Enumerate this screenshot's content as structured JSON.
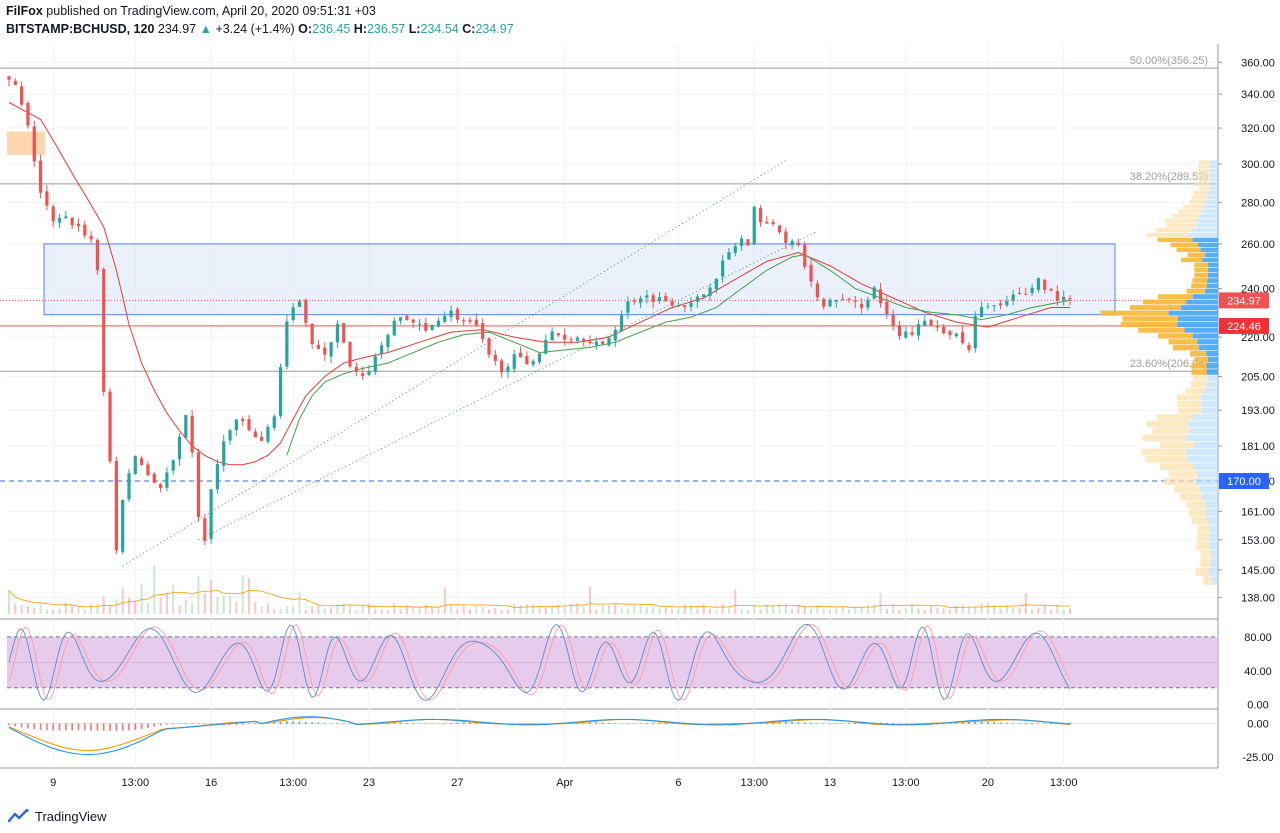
{
  "header": {
    "author": "FilFox",
    "published_text": " published on TradingView.com, April 20, 2020 09:51:31 +03",
    "symbol": "BITSTAMP:BCHUSD, 120",
    "last_price": "234.97",
    "change": "+3.24 (+1.4%)",
    "open_label": "O:",
    "open": "236.45",
    "high_label": "H:",
    "high": "236.57",
    "low_label": "L:",
    "low": "234.54",
    "close_label": "C:",
    "close": "234.97"
  },
  "footer": {
    "brand": "TradingView"
  },
  "colors": {
    "up": "#26a69a",
    "down": "#ef5350",
    "ma_red": "#e53935",
    "ma_green": "#43a047",
    "zone_blue": "#2962ff",
    "stoch_bg": "#e1bee7",
    "macd_blue": "#2196f3",
    "macd_orange": "#ff9800"
  },
  "chart_data": [
    {
      "type": "candlestick",
      "panel": "price",
      "price_axis": {
        "ticks": [
          "360.00",
          "340.00",
          "320.00",
          "300.00",
          "280.00",
          "260.00",
          "240.00",
          "220.00",
          "205.00",
          "193.00",
          "181.00",
          "170.00",
          "161.00",
          "153.00",
          "145.00",
          "138.00"
        ],
        "scale": "log",
        "range": [
          133,
          372
        ]
      },
      "time_axis": {
        "ticks": [
          "9",
          "13:00",
          "16",
          "13:00",
          "23",
          "27",
          "Apr",
          "6",
          "13:00",
          "13",
          "13:00",
          "20",
          "13:00"
        ]
      },
      "price_path": [
        [
          0,
          350
        ],
        [
          2,
          345
        ],
        [
          4,
          320
        ],
        [
          6,
          285
        ],
        [
          8,
          270
        ],
        [
          10,
          272
        ],
        [
          12,
          268
        ],
        [
          14,
          262
        ],
        [
          15,
          248
        ],
        [
          16,
          200
        ],
        [
          17,
          175
        ],
        [
          18,
          150
        ],
        [
          19,
          165
        ],
        [
          21,
          178
        ],
        [
          23,
          172
        ],
        [
          25,
          168
        ],
        [
          27,
          176
        ],
        [
          29,
          190
        ],
        [
          30,
          178
        ],
        [
          31,
          160
        ],
        [
          32,
          152
        ],
        [
          33,
          168
        ],
        [
          35,
          182
        ],
        [
          37,
          190
        ],
        [
          39,
          186
        ],
        [
          41,
          182
        ],
        [
          43,
          192
        ],
        [
          45,
          225
        ],
        [
          47,
          236
        ],
        [
          49,
          218
        ],
        [
          51,
          212
        ],
        [
          53,
          226
        ],
        [
          55,
          208
        ],
        [
          57,
          204
        ],
        [
          59,
          212
        ],
        [
          61,
          222
        ],
        [
          63,
          228
        ],
        [
          65,
          226
        ],
        [
          67,
          222
        ],
        [
          69,
          228
        ],
        [
          71,
          230
        ],
        [
          73,
          226
        ],
        [
          75,
          224
        ],
        [
          77,
          212
        ],
        [
          79,
          208
        ],
        [
          81,
          212
        ],
        [
          83,
          210
        ],
        [
          85,
          214
        ],
        [
          87,
          222
        ],
        [
          89,
          220
        ],
        [
          91,
          220
        ],
        [
          93,
          219
        ],
        [
          95,
          216
        ],
        [
          97,
          224
        ],
        [
          99,
          234
        ],
        [
          101,
          237
        ],
        [
          103,
          236
        ],
        [
          105,
          235
        ],
        [
          107,
          234
        ],
        [
          109,
          233
        ],
        [
          111,
          238
        ],
        [
          113,
          246
        ],
        [
          115,
          256
        ],
        [
          117,
          262
        ],
        [
          118,
          258
        ],
        [
          119,
          276
        ],
        [
          120,
          272
        ],
        [
          122,
          268
        ],
        [
          124,
          262
        ],
        [
          126,
          258
        ],
        [
          128,
          242
        ],
        [
          130,
          232
        ],
        [
          132,
          236
        ],
        [
          134,
          234
        ],
        [
          136,
          233
        ],
        [
          138,
          240
        ],
        [
          140,
          228
        ],
        [
          142,
          220
        ],
        [
          144,
          222
        ],
        [
          146,
          226
        ],
        [
          148,
          224
        ],
        [
          150,
          222
        ],
        [
          152,
          218
        ],
        [
          153,
          214
        ],
        [
          154,
          228
        ],
        [
          156,
          234
        ],
        [
          158,
          232
        ],
        [
          160,
          236
        ],
        [
          162,
          238
        ],
        [
          164,
          244
        ],
        [
          166,
          238
        ],
        [
          168,
          235
        ]
      ],
      "ma_red_path": [
        [
          0,
          335
        ],
        [
          5,
          325
        ],
        [
          10,
          295
        ],
        [
          15,
          268
        ],
        [
          17,
          248
        ],
        [
          19,
          225
        ],
        [
          21,
          210
        ],
        [
          23,
          200
        ],
        [
          25,
          192
        ],
        [
          27,
          186
        ],
        [
          29,
          181
        ],
        [
          31,
          178
        ],
        [
          33,
          176
        ],
        [
          35,
          175
        ],
        [
          37,
          175
        ],
        [
          39,
          176
        ],
        [
          41,
          178
        ],
        [
          43,
          182
        ],
        [
          45,
          190
        ],
        [
          47,
          198
        ],
        [
          50,
          205
        ],
        [
          53,
          210
        ],
        [
          56,
          212
        ],
        [
          60,
          214
        ],
        [
          65,
          218
        ],
        [
          70,
          222
        ],
        [
          75,
          223
        ],
        [
          80,
          220
        ],
        [
          85,
          218
        ],
        [
          90,
          218
        ],
        [
          95,
          220
        ],
        [
          100,
          226
        ],
        [
          105,
          232
        ],
        [
          110,
          236
        ],
        [
          115,
          244
        ],
        [
          120,
          252
        ],
        [
          125,
          256
        ],
        [
          130,
          250
        ],
        [
          135,
          242
        ],
        [
          140,
          236
        ],
        [
          145,
          230
        ],
        [
          150,
          226
        ],
        [
          155,
          224
        ],
        [
          160,
          228
        ],
        [
          165,
          232
        ],
        [
          168,
          232
        ]
      ],
      "ma_green_path": [
        [
          44,
          178
        ],
        [
          46,
          190
        ],
        [
          48,
          198
        ],
        [
          50,
          203
        ],
        [
          53,
          206
        ],
        [
          56,
          208
        ],
        [
          60,
          210
        ],
        [
          64,
          214
        ],
        [
          68,
          218
        ],
        [
          72,
          221
        ],
        [
          76,
          222
        ],
        [
          80,
          218
        ],
        [
          84,
          214
        ],
        [
          88,
          215
        ],
        [
          92,
          216
        ],
        [
          96,
          218
        ],
        [
          100,
          222
        ],
        [
          104,
          226
        ],
        [
          108,
          228
        ],
        [
          112,
          232
        ],
        [
          116,
          240
        ],
        [
          120,
          248
        ],
        [
          124,
          254
        ],
        [
          126,
          255
        ],
        [
          130,
          248
        ],
        [
          134,
          240
        ],
        [
          138,
          236
        ],
        [
          142,
          232
        ],
        [
          146,
          230
        ],
        [
          150,
          229
        ],
        [
          154,
          227
        ],
        [
          158,
          229
        ],
        [
          162,
          232
        ],
        [
          166,
          234
        ],
        [
          168,
          235
        ]
      ],
      "fibonacci": [
        {
          "label": "50.00%(356.25)",
          "price": 356.25
        },
        {
          "label": "38.20%(289.52)",
          "price": 289.52
        },
        {
          "label": "23.60%(206.96)",
          "price": 206.96
        }
      ],
      "zone": {
        "top": 260,
        "bottom": 229
      },
      "horizontal_lines": [
        {
          "price": 224.46,
          "label": "224.46",
          "style": "solid",
          "color": "#ef5350"
        },
        {
          "price": 170.0,
          "label": "170.00",
          "style": "dashed",
          "color": "#2962ff"
        },
        {
          "price": 234.97,
          "label": "234.97",
          "style": "dotted",
          "color": "#ef5350"
        }
      ],
      "supply_box": {
        "top": 318,
        "bottom": 305
      },
      "trendlines": [
        {
          "from": [
            18,
            146
          ],
          "to": [
            123,
            302
          ]
        },
        {
          "from": [
            30,
            153
          ],
          "to": [
            128,
            266
          ]
        }
      ]
    },
    {
      "type": "line",
      "panel": "stochastic",
      "axis_ticks": [
        "80.00",
        "40.00",
        "0.00"
      ],
      "bands": [
        20,
        80
      ],
      "range": [
        -4,
        100
      ]
    },
    {
      "type": "line",
      "panel": "macd",
      "axis_ticks": [
        "0.00",
        "-25.00"
      ],
      "range": [
        -33,
        10
      ]
    }
  ]
}
